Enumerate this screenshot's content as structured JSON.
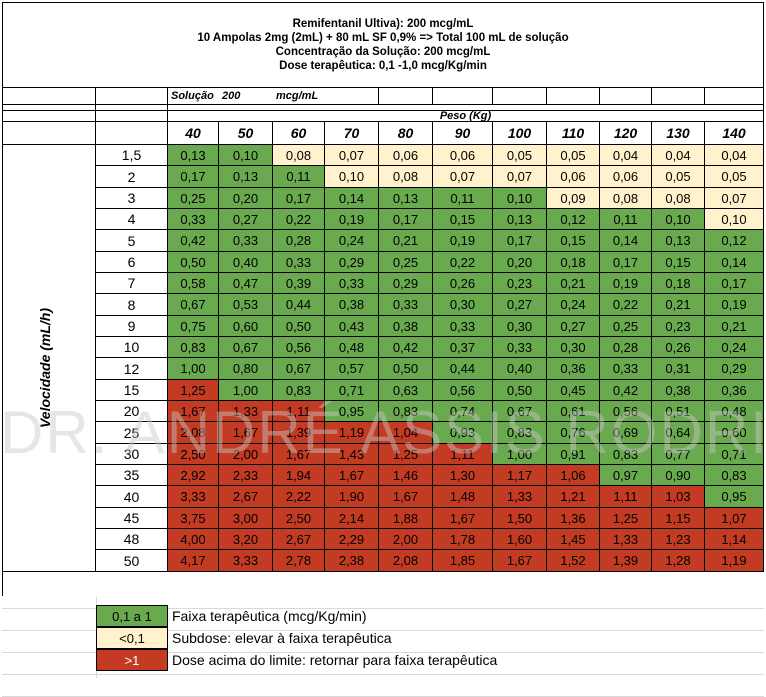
{
  "header": {
    "lines": [
      "Remifentanil Ultiva): 200 mcg/mL",
      "10 Ampolas 2mg (2mL) + 80 mL SF 0,9% => Total 100 mL de solução",
      "Concentração da Solução: 200 mcg/mL",
      "Dose terapêutica: 0,1 -1,0 mcg/Kg/min"
    ]
  },
  "solution_row": {
    "label": "Solução",
    "value": "200",
    "unit": "mcg/mL"
  },
  "weight_header": "Peso (Kg)",
  "y_axis_label": "Velocidade (mL/h)",
  "weights": [
    "40",
    "50",
    "60",
    "70",
    "80",
    "90",
    "100",
    "110",
    "120",
    "130",
    "140"
  ],
  "rows": [
    {
      "vel": "1,5",
      "values": [
        "0,13",
        "0,10",
        "0,08",
        "0,07",
        "0,06",
        "0,06",
        "0,05",
        "0,05",
        "0,04",
        "0,04",
        "0,04"
      ],
      "zones": [
        "g",
        "g",
        "y",
        "y",
        "y",
        "y",
        "y",
        "y",
        "y",
        "y",
        "y"
      ]
    },
    {
      "vel": "2",
      "values": [
        "0,17",
        "0,13",
        "0,11",
        "0,10",
        "0,08",
        "0,07",
        "0,07",
        "0,06",
        "0,06",
        "0,05",
        "0,05"
      ],
      "zones": [
        "g",
        "g",
        "g",
        "y",
        "y",
        "y",
        "y",
        "y",
        "y",
        "y",
        "y"
      ]
    },
    {
      "vel": "3",
      "values": [
        "0,25",
        "0,20",
        "0,17",
        "0,14",
        "0,13",
        "0,11",
        "0,10",
        "0,09",
        "0,08",
        "0,08",
        "0,07"
      ],
      "zones": [
        "g",
        "g",
        "g",
        "g",
        "g",
        "g",
        "g",
        "y",
        "y",
        "y",
        "y"
      ]
    },
    {
      "vel": "4",
      "values": [
        "0,33",
        "0,27",
        "0,22",
        "0,19",
        "0,17",
        "0,15",
        "0,13",
        "0,12",
        "0,11",
        "0,10",
        "0,10"
      ],
      "zones": [
        "g",
        "g",
        "g",
        "g",
        "g",
        "g",
        "g",
        "g",
        "g",
        "g",
        "y"
      ]
    },
    {
      "vel": "5",
      "values": [
        "0,42",
        "0,33",
        "0,28",
        "0,24",
        "0,21",
        "0,19",
        "0,17",
        "0,15",
        "0,14",
        "0,13",
        "0,12"
      ],
      "zones": [
        "g",
        "g",
        "g",
        "g",
        "g",
        "g",
        "g",
        "g",
        "g",
        "g",
        "g"
      ]
    },
    {
      "vel": "6",
      "values": [
        "0,50",
        "0,40",
        "0,33",
        "0,29",
        "0,25",
        "0,22",
        "0,20",
        "0,18",
        "0,17",
        "0,15",
        "0,14"
      ],
      "zones": [
        "g",
        "g",
        "g",
        "g",
        "g",
        "g",
        "g",
        "g",
        "g",
        "g",
        "g"
      ]
    },
    {
      "vel": "7",
      "values": [
        "0,58",
        "0,47",
        "0,39",
        "0,33",
        "0,29",
        "0,26",
        "0,23",
        "0,21",
        "0,19",
        "0,18",
        "0,17"
      ],
      "zones": [
        "g",
        "g",
        "g",
        "g",
        "g",
        "g",
        "g",
        "g",
        "g",
        "g",
        "g"
      ]
    },
    {
      "vel": "8",
      "values": [
        "0,67",
        "0,53",
        "0,44",
        "0,38",
        "0,33",
        "0,30",
        "0,27",
        "0,24",
        "0,22",
        "0,21",
        "0,19"
      ],
      "zones": [
        "g",
        "g",
        "g",
        "g",
        "g",
        "g",
        "g",
        "g",
        "g",
        "g",
        "g"
      ]
    },
    {
      "vel": "9",
      "values": [
        "0,75",
        "0,60",
        "0,50",
        "0,43",
        "0,38",
        "0,33",
        "0,30",
        "0,27",
        "0,25",
        "0,23",
        "0,21"
      ],
      "zones": [
        "g",
        "g",
        "g",
        "g",
        "g",
        "g",
        "g",
        "g",
        "g",
        "g",
        "g"
      ]
    },
    {
      "vel": "10",
      "values": [
        "0,83",
        "0,67",
        "0,56",
        "0,48",
        "0,42",
        "0,37",
        "0,33",
        "0,30",
        "0,28",
        "0,26",
        "0,24"
      ],
      "zones": [
        "g",
        "g",
        "g",
        "g",
        "g",
        "g",
        "g",
        "g",
        "g",
        "g",
        "g"
      ]
    },
    {
      "vel": "12",
      "values": [
        "1,00",
        "0,80",
        "0,67",
        "0,57",
        "0,50",
        "0,44",
        "0,40",
        "0,36",
        "0,33",
        "0,31",
        "0,29"
      ],
      "zones": [
        "g",
        "g",
        "g",
        "g",
        "g",
        "g",
        "g",
        "g",
        "g",
        "g",
        "g"
      ]
    },
    {
      "vel": "15",
      "values": [
        "1,25",
        "1,00",
        "0,83",
        "0,71",
        "0,63",
        "0,56",
        "0,50",
        "0,45",
        "0,42",
        "0,38",
        "0,36"
      ],
      "zones": [
        "r",
        "g",
        "g",
        "g",
        "g",
        "g",
        "g",
        "g",
        "g",
        "g",
        "g"
      ]
    },
    {
      "vel": "20",
      "values": [
        "1,67",
        "1,33",
        "1,11",
        "0,95",
        "0,83",
        "0,74",
        "0,67",
        "0,61",
        "0,56",
        "0,51",
        "0,48"
      ],
      "zones": [
        "r",
        "r",
        "r",
        "g",
        "g",
        "g",
        "g",
        "g",
        "g",
        "g",
        "g"
      ]
    },
    {
      "vel": "25",
      "values": [
        "2,08",
        "1,67",
        "1,39",
        "1,19",
        "1,04",
        "0,93",
        "0,83",
        "0,76",
        "0,69",
        "0,64",
        "0,60"
      ],
      "zones": [
        "r",
        "r",
        "r",
        "r",
        "r",
        "g",
        "g",
        "g",
        "g",
        "g",
        "g"
      ]
    },
    {
      "vel": "30",
      "values": [
        "2,50",
        "2,00",
        "1,67",
        "1,43",
        "1,25",
        "1,11",
        "1,00",
        "0,91",
        "0,83",
        "0,77",
        "0,71"
      ],
      "zones": [
        "r",
        "r",
        "r",
        "r",
        "r",
        "r",
        "g",
        "g",
        "g",
        "g",
        "g"
      ]
    },
    {
      "vel": "35",
      "values": [
        "2,92",
        "2,33",
        "1,94",
        "1,67",
        "1,46",
        "1,30",
        "1,17",
        "1,06",
        "0,97",
        "0,90",
        "0,83"
      ],
      "zones": [
        "r",
        "r",
        "r",
        "r",
        "r",
        "r",
        "r",
        "r",
        "g",
        "g",
        "g"
      ]
    },
    {
      "vel": "40",
      "values": [
        "3,33",
        "2,67",
        "2,22",
        "1,90",
        "1,67",
        "1,48",
        "1,33",
        "1,21",
        "1,11",
        "1,03",
        "0,95"
      ],
      "zones": [
        "r",
        "r",
        "r",
        "r",
        "r",
        "r",
        "r",
        "r",
        "r",
        "r",
        "g"
      ]
    },
    {
      "vel": "45",
      "values": [
        "3,75",
        "3,00",
        "2,50",
        "2,14",
        "1,88",
        "1,67",
        "1,50",
        "1,36",
        "1,25",
        "1,15",
        "1,07"
      ],
      "zones": [
        "r",
        "r",
        "r",
        "r",
        "r",
        "r",
        "r",
        "r",
        "r",
        "r",
        "r"
      ]
    },
    {
      "vel": "48",
      "values": [
        "4,00",
        "3,20",
        "2,67",
        "2,29",
        "2,00",
        "1,78",
        "1,60",
        "1,45",
        "1,33",
        "1,23",
        "1,14"
      ],
      "zones": [
        "r",
        "r",
        "r",
        "r",
        "r",
        "r",
        "r",
        "r",
        "r",
        "r",
        "r"
      ]
    },
    {
      "vel": "50",
      "values": [
        "4,17",
        "3,33",
        "2,78",
        "2,38",
        "2,08",
        "1,85",
        "1,67",
        "1,52",
        "1,39",
        "1,28",
        "1,19"
      ],
      "zones": [
        "r",
        "r",
        "r",
        "r",
        "r",
        "r",
        "r",
        "r",
        "r",
        "r",
        "r"
      ]
    }
  ],
  "legend": [
    {
      "swatch": "0,1 a 1",
      "text": "Faixa terapêutica (mcg/Kg/min)",
      "zone": "g"
    },
    {
      "swatch": "<0,1",
      "text": "Subdose: elevar à faixa terapêutica",
      "zone": "y"
    },
    {
      "swatch": ">1",
      "text": "Dose acima do limite: retornar para faixa terapêutica",
      "zone": "r"
    }
  ],
  "watermark": "DR. ANDRÉ ASSIS RODRIGUES",
  "colors": {
    "green": "#6aaa4f",
    "yellow": "#fff2cc",
    "red": "#c23b22"
  }
}
